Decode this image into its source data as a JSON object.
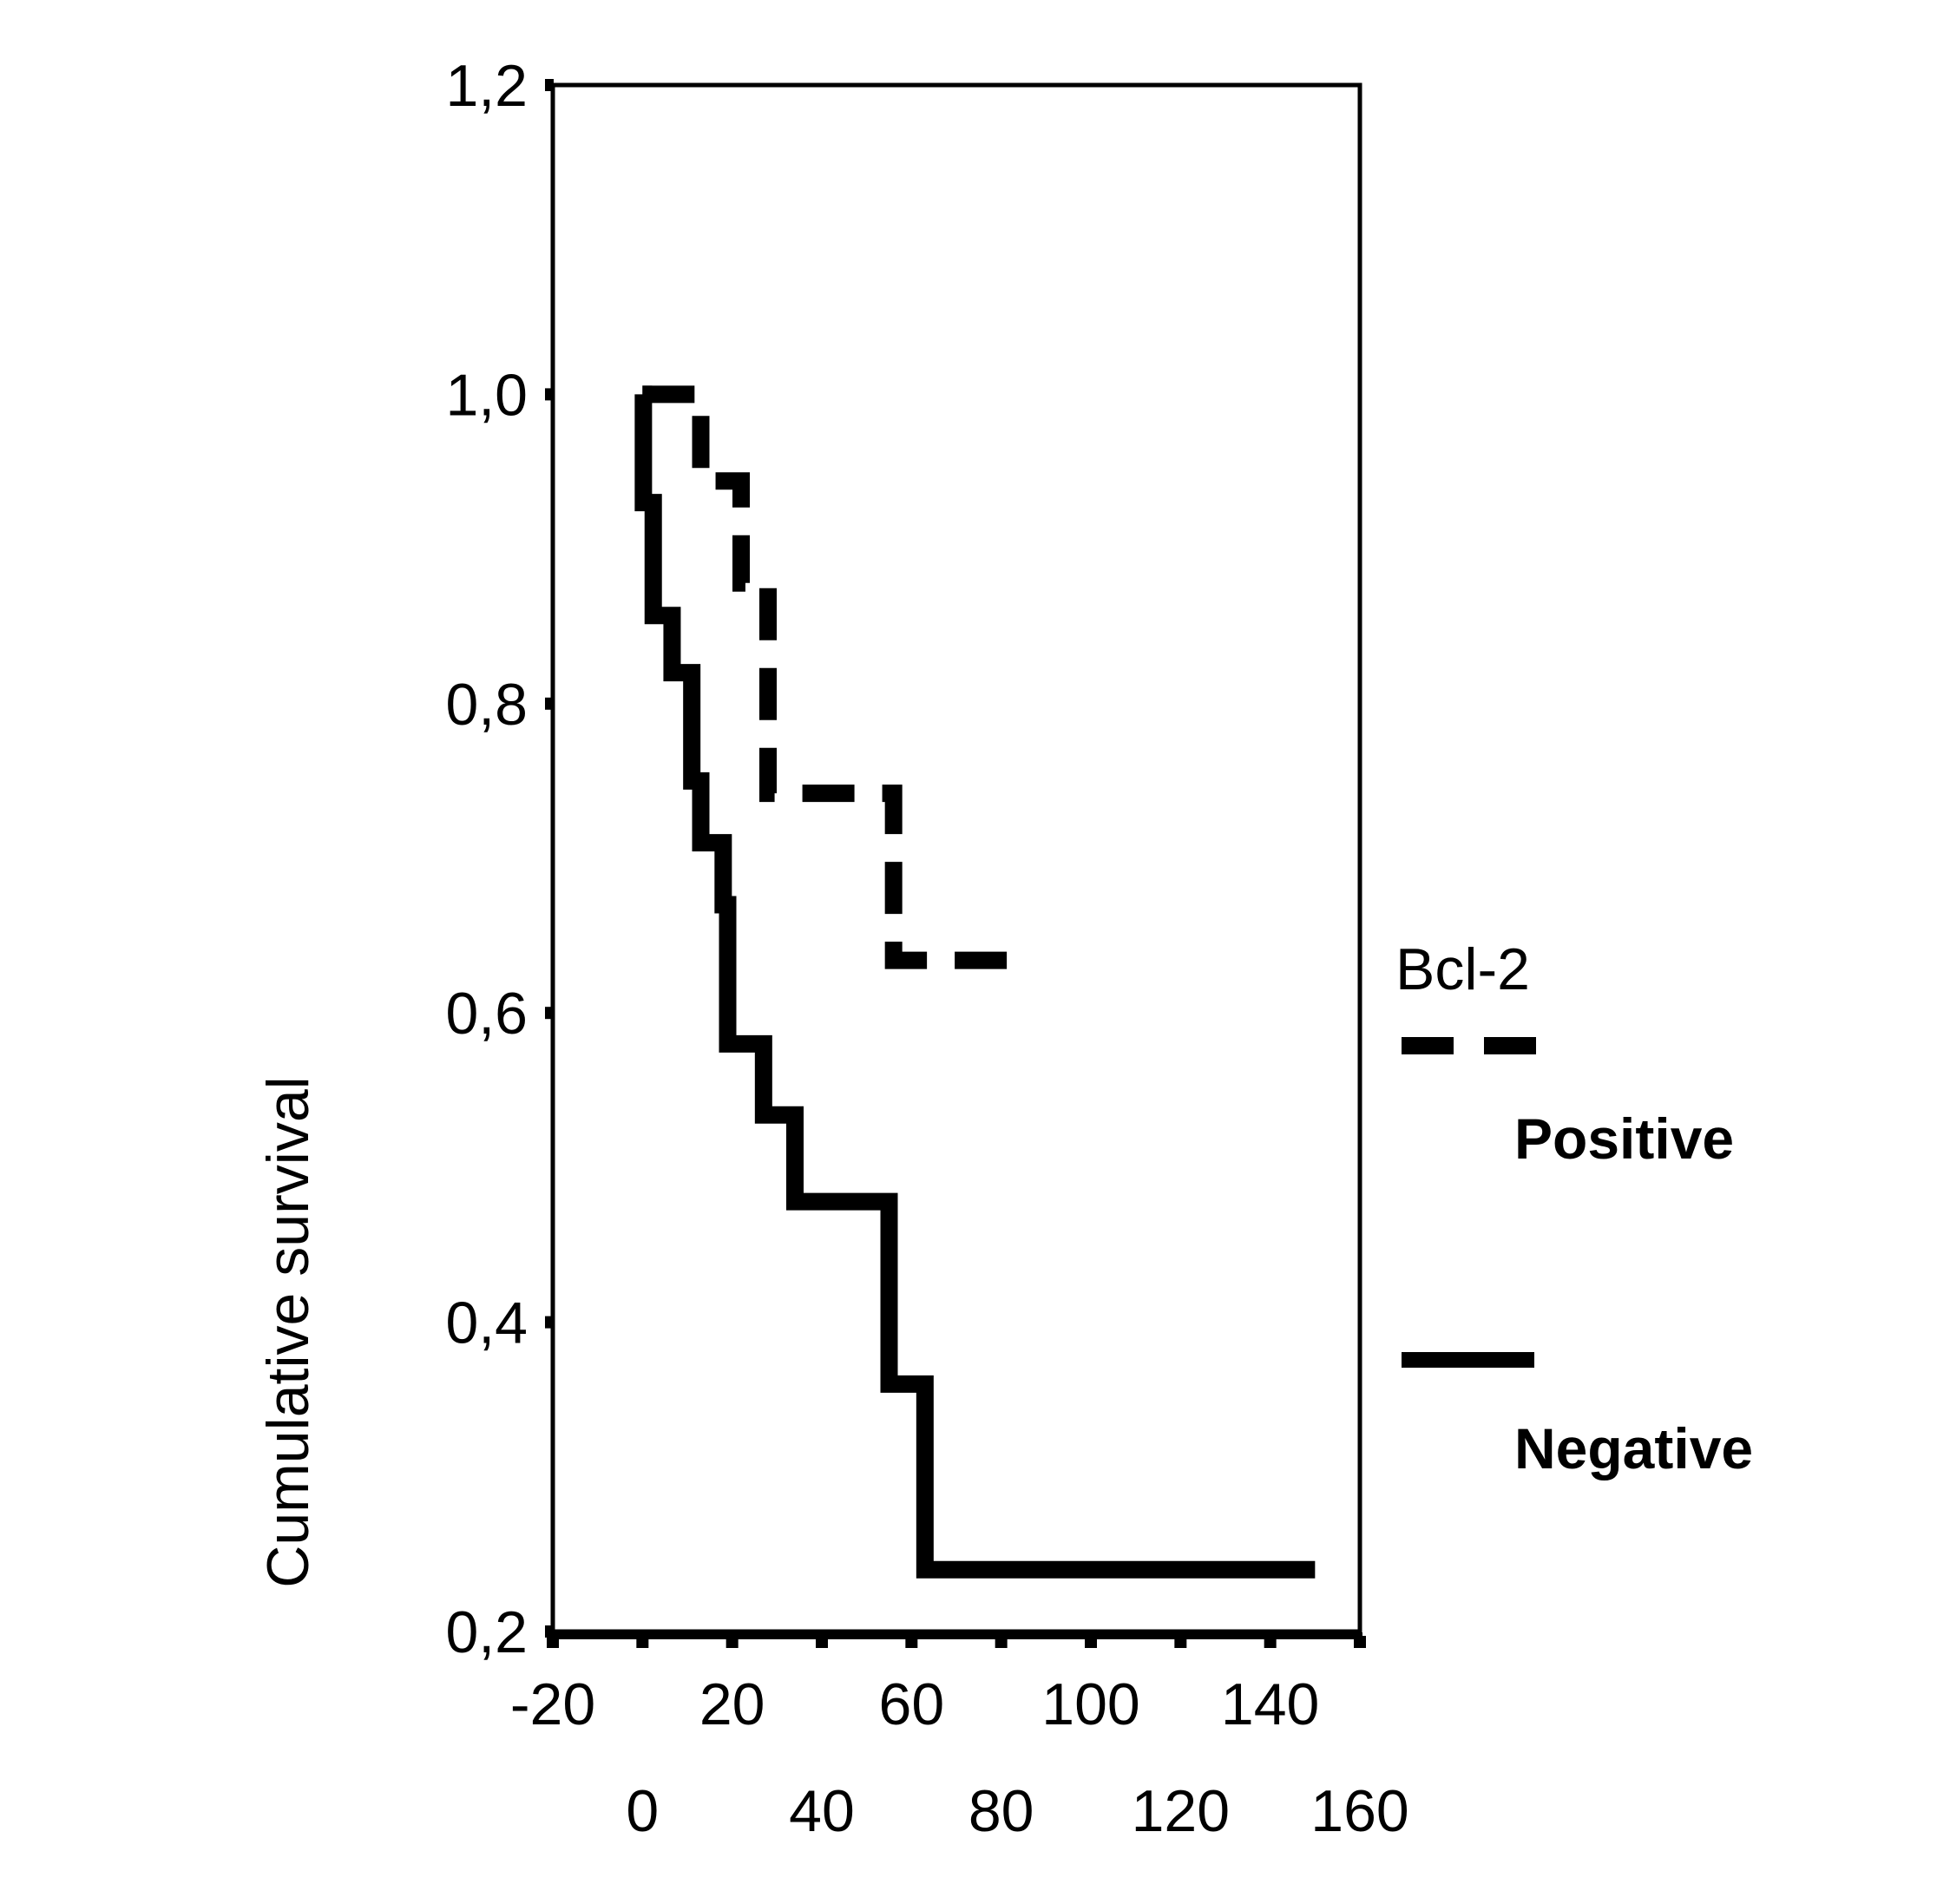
{
  "chart_data": {
    "type": "line",
    "title": "",
    "xlabel": "",
    "ylabel": "Cumulative survival",
    "xlim": [
      -20,
      160
    ],
    "ylim": [
      0.2,
      1.2
    ],
    "x_ticks": [
      -20,
      0,
      20,
      40,
      60,
      80,
      100,
      120,
      140,
      160
    ],
    "x_tick_labels": [
      "-20",
      "0",
      "20",
      "40",
      "60",
      "80",
      "100",
      "120",
      "140",
      "160"
    ],
    "y_ticks": [
      0.2,
      0.4,
      0.6,
      0.8,
      1.0,
      1.2
    ],
    "y_tick_labels": [
      "0,2",
      "0,4",
      "0,6",
      "0,8",
      "1,0",
      "1,2"
    ],
    "grid": false,
    "legend": {
      "title": "Bcl-2",
      "placement": "right"
    },
    "series": [
      {
        "name": "Positive",
        "style": "dashed",
        "color": "#000000",
        "step_points": [
          [
            0,
            1.0
          ],
          [
            13,
            0.944
          ],
          [
            22,
            0.878
          ],
          [
            28,
            0.742
          ],
          [
            56,
            0.634
          ],
          [
            87,
            0.634
          ]
        ]
      },
      {
        "name": "Negative",
        "style": "solid",
        "color": "#000000",
        "step_points": [
          [
            0,
            1.0
          ],
          [
            0.2,
            0.93
          ],
          [
            2.4,
            0.857
          ],
          [
            6.6,
            0.82
          ],
          [
            11,
            0.75
          ],
          [
            13,
            0.71
          ],
          [
            18,
            0.67
          ],
          [
            19,
            0.58
          ],
          [
            27,
            0.534
          ],
          [
            34,
            0.478
          ],
          [
            55,
            0.36
          ],
          [
            63,
            0.24
          ],
          [
            150,
            0.24
          ]
        ]
      }
    ]
  }
}
